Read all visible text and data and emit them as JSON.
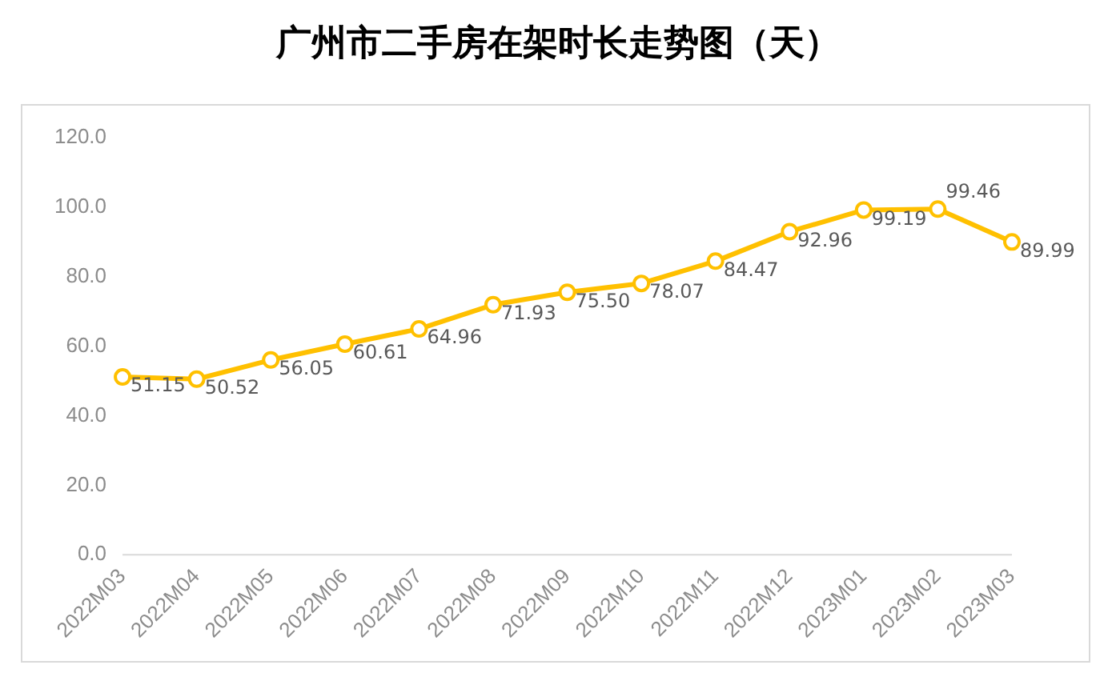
{
  "chart_data": {
    "type": "line",
    "title": "广州市二手房在架时长走势图（天）",
    "categories": [
      "2022M03",
      "2022M04",
      "2022M05",
      "2022M06",
      "2022M07",
      "2022M08",
      "2022M09",
      "2022M10",
      "2022M11",
      "2022M12",
      "2023M01",
      "2023M02",
      "2023M03"
    ],
    "series": [
      {
        "color": "#ffc000",
        "values": [
          51.15,
          50.52,
          56.05,
          60.61,
          64.96,
          71.93,
          75.5,
          78.07,
          84.47,
          92.96,
          99.19,
          99.46,
          89.99
        ],
        "value_labels": [
          "51.15",
          "50.52",
          "56.05",
          "60.61",
          "64.96",
          "71.93",
          "75.50",
          "78.07",
          "84.47",
          "92.96",
          "99.19",
          "99.46",
          "89.99"
        ]
      }
    ],
    "ylim": [
      0,
      120
    ],
    "yticks": [
      {
        "value": 0,
        "label": "0.0"
      },
      {
        "value": 20,
        "label": "20.0"
      },
      {
        "value": 40,
        "label": "40.0"
      },
      {
        "value": 60,
        "label": "60.0"
      },
      {
        "value": 80,
        "label": "80.0"
      },
      {
        "value": 100,
        "label": "100.0"
      },
      {
        "value": 120,
        "label": "120.0"
      }
    ],
    "grid": false,
    "legend": false,
    "marker": "circle",
    "line_style": "solid"
  }
}
